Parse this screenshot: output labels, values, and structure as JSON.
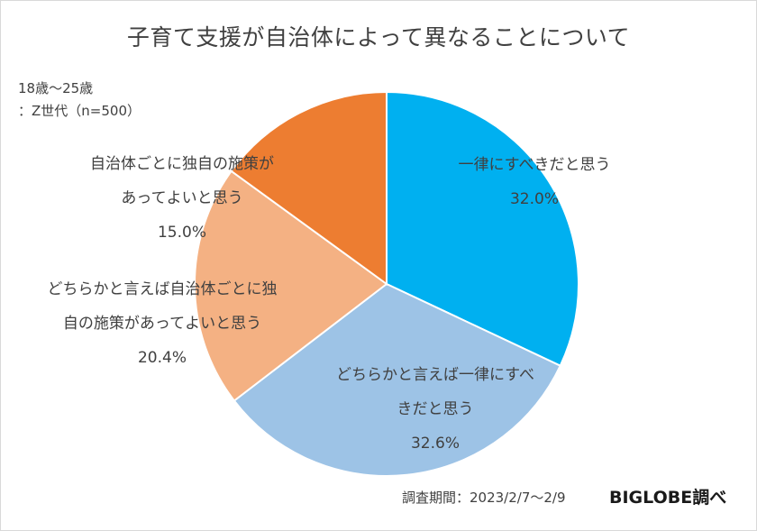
{
  "chart_data": {
    "type": "pie",
    "title": "子育て支援が自治体によって異なることについて",
    "sample": [
      "18歳～25歳",
      "：Z世代（n=500）"
    ],
    "slices": [
      {
        "label_lines": [
          "一律にすべきだと思う"
        ],
        "value": 32.0,
        "value_label": "32.0%",
        "color": "#00b0f0"
      },
      {
        "label_lines": [
          "どちらかと言えば一律にすべ",
          "きだと思う"
        ],
        "value": 32.6,
        "value_label": "32.6%",
        "color": "#9dc3e6"
      },
      {
        "label_lines": [
          "どちらかと言えば自治体ごとに独",
          "自の施策があってよいと思う"
        ],
        "value": 20.4,
        "value_label": "20.4%",
        "color": "#f4b183"
      },
      {
        "label_lines": [
          "自治体ごとに独自の施策が",
          "あってよいと思う"
        ],
        "value": 15.0,
        "value_label": "15.0%",
        "color": "#ed7d31"
      }
    ],
    "start_angle_deg": 0,
    "direction": "clockwise",
    "legend": "none"
  },
  "footer": {
    "period": "調査期間：2023/2/7～2/9",
    "brand": "BIGLOBE調べ"
  }
}
